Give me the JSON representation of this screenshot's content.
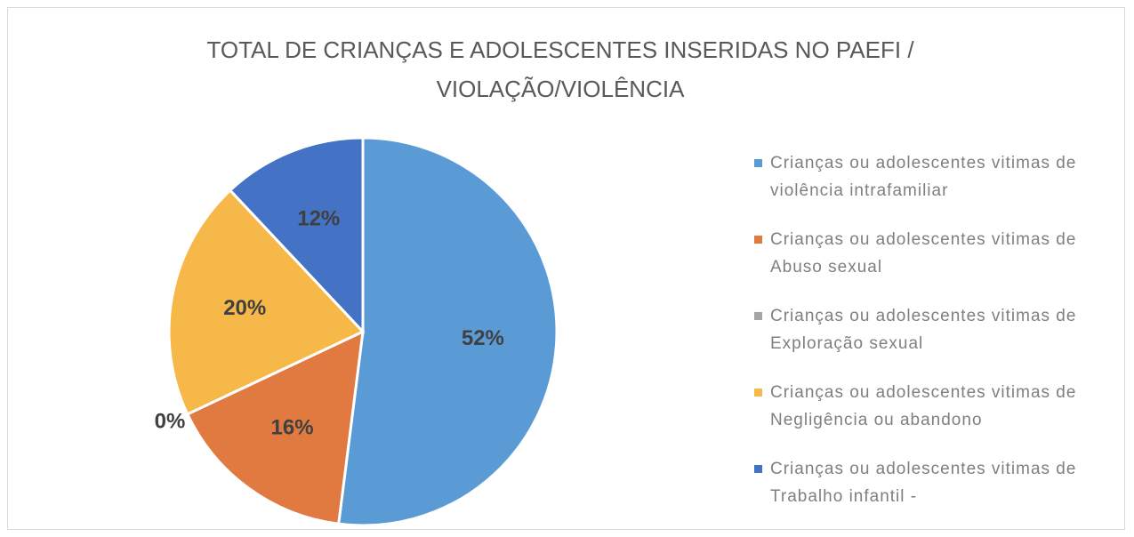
{
  "chart_data": {
    "type": "pie",
    "title": "TOTAL DE CRIANÇAS E ADOLESCENTES INSERIDAS NO PAEFI / VIOLAÇÃO/VIOLÊNCIA",
    "categories": [
      "Crianças ou adolescentes vitimas de violência intrafamiliar",
      "Crianças ou adolescentes vitimas de Abuso sexual",
      "Crianças ou adolescentes vitimas de Exploração sexual",
      "Crianças ou adolescentes vitimas de Negligência ou abandono",
      "Crianças ou adolescentes vitimas de Trabalho infantil -"
    ],
    "values": [
      52,
      16,
      0,
      20,
      12
    ],
    "value_labels": [
      "52%",
      "16%",
      "0%",
      "20%",
      "12%"
    ],
    "colors": [
      "#5b9bd5",
      "#e07a40",
      "#a5a5a5",
      "#f7b84a",
      "#4472c4"
    ],
    "legend": "right"
  }
}
